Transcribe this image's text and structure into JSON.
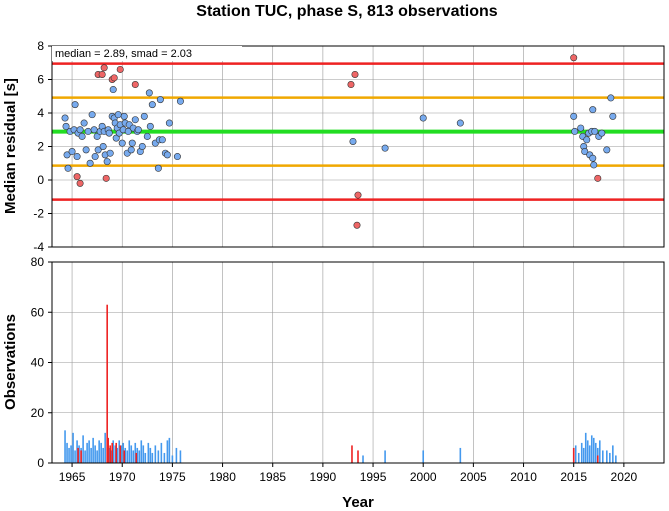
{
  "chart_data": [
    {
      "type": "scatter",
      "title": "Station TUC, phase S, 813 observations",
      "ylabel": "Median residual [s]",
      "annotation": "median = 2.89, smad = 2.03",
      "xlim": [
        1963,
        2024
      ],
      "ylim": [
        -4,
        8
      ],
      "yticks": [
        8,
        6,
        4,
        2,
        0,
        -2,
        -4
      ],
      "grid": true,
      "reference_lines": [
        {
          "y": 6.95,
          "color": "#ee2222",
          "role": "upper-outer"
        },
        {
          "y": 4.92,
          "color": "#f0a800",
          "role": "upper-inner"
        },
        {
          "y": 2.89,
          "color": "#22dd22",
          "role": "median"
        },
        {
          "y": 0.86,
          "color": "#f0a800",
          "role": "lower-inner"
        },
        {
          "y": -1.17,
          "color": "#ee2222",
          "role": "lower-outer"
        }
      ],
      "series": [
        {
          "color": "#77aaee",
          "points": [
            [
              1964.3,
              3.7
            ],
            [
              1964.4,
              3.2
            ],
            [
              1964.5,
              1.5
            ],
            [
              1964.6,
              0.7
            ],
            [
              1964.8,
              2.9
            ],
            [
              1965.0,
              1.7
            ],
            [
              1965.2,
              3.0
            ],
            [
              1965.3,
              4.5
            ],
            [
              1965.5,
              1.4
            ],
            [
              1965.6,
              2.8
            ],
            [
              1965.8,
              3.0
            ],
            [
              1966.0,
              2.6
            ],
            [
              1966.2,
              3.4
            ],
            [
              1966.4,
              1.8
            ],
            [
              1966.6,
              2.9
            ],
            [
              1966.8,
              1.0
            ],
            [
              1967.0,
              3.9
            ],
            [
              1967.2,
              3.0
            ],
            [
              1967.3,
              1.4
            ],
            [
              1967.5,
              2.6
            ],
            [
              1967.6,
              1.8
            ],
            [
              1967.8,
              2.9
            ],
            [
              1968.0,
              3.2
            ],
            [
              1968.1,
              2.0
            ],
            [
              1968.2,
              2.9
            ],
            [
              1968.3,
              1.5
            ],
            [
              1968.5,
              1.1
            ],
            [
              1968.6,
              3.0
            ],
            [
              1968.7,
              2.8
            ],
            [
              1968.8,
              1.6
            ],
            [
              1969.0,
              3.8
            ],
            [
              1969.1,
              5.4
            ],
            [
              1969.2,
              3.7
            ],
            [
              1969.3,
              3.4
            ],
            [
              1969.4,
              2.5
            ],
            [
              1969.5,
              3.1
            ],
            [
              1969.6,
              3.9
            ],
            [
              1969.7,
              2.8
            ],
            [
              1969.8,
              3.3
            ],
            [
              1970.0,
              2.2
            ],
            [
              1970.1,
              3.0
            ],
            [
              1970.2,
              3.8
            ],
            [
              1970.3,
              3.4
            ],
            [
              1970.5,
              1.6
            ],
            [
              1970.6,
              2.9
            ],
            [
              1970.7,
              3.3
            ],
            [
              1970.9,
              1.8
            ],
            [
              1971.0,
              2.2
            ],
            [
              1971.1,
              3.1
            ],
            [
              1971.3,
              3.6
            ],
            [
              1971.5,
              2.9
            ],
            [
              1971.6,
              3.0
            ],
            [
              1971.8,
              1.7
            ],
            [
              1972.0,
              2.0
            ],
            [
              1972.2,
              3.8
            ],
            [
              1972.5,
              2.6
            ],
            [
              1972.7,
              5.2
            ],
            [
              1972.8,
              3.2
            ],
            [
              1973.0,
              4.5
            ],
            [
              1973.3,
              2.2
            ],
            [
              1973.6,
              0.7
            ],
            [
              1973.7,
              2.4
            ],
            [
              1973.8,
              4.8
            ],
            [
              1974.0,
              2.4
            ],
            [
              1974.3,
              1.6
            ],
            [
              1974.5,
              1.5
            ],
            [
              1974.7,
              3.4
            ],
            [
              1975.5,
              1.4
            ],
            [
              1975.8,
              4.7
            ],
            [
              1993.0,
              2.3
            ],
            [
              1996.2,
              1.9
            ],
            [
              2000.0,
              3.7
            ],
            [
              2003.7,
              3.4
            ],
            [
              2015.0,
              3.8
            ],
            [
              2015.1,
              2.9
            ],
            [
              2015.7,
              3.1
            ],
            [
              2015.9,
              2.6
            ],
            [
              2016.0,
              2.0
            ],
            [
              2016.1,
              1.7
            ],
            [
              2016.3,
              2.4
            ],
            [
              2016.5,
              2.8
            ],
            [
              2016.6,
              1.5
            ],
            [
              2016.8,
              2.9
            ],
            [
              2016.9,
              1.3
            ],
            [
              2017.0,
              0.9
            ],
            [
              2017.1,
              2.9
            ],
            [
              2017.5,
              2.6
            ],
            [
              2017.8,
              2.8
            ],
            [
              2018.3,
              1.8
            ],
            [
              2018.7,
              4.9
            ],
            [
              2018.9,
              3.8
            ],
            [
              2016.9,
              4.2
            ]
          ]
        },
        {
          "color": "#ee6666",
          "points": [
            [
              1965.5,
              0.2
            ],
            [
              1965.8,
              -0.2
            ],
            [
              1967.6,
              6.3
            ],
            [
              1968.0,
              6.3
            ],
            [
              1968.2,
              6.7
            ],
            [
              1968.4,
              0.1
            ],
            [
              1969.0,
              6.0
            ],
            [
              1969.2,
              6.1
            ],
            [
              1969.8,
              6.6
            ],
            [
              1971.3,
              5.7
            ],
            [
              1992.8,
              5.7
            ],
            [
              1993.2,
              6.3
            ],
            [
              1993.5,
              -0.9
            ],
            [
              1993.4,
              -2.7
            ],
            [
              2015.0,
              7.3
            ],
            [
              2017.4,
              0.1
            ]
          ]
        }
      ]
    },
    {
      "type": "bar",
      "ylabel": "Observations",
      "xlabel": "Year",
      "xlim": [
        1963,
        2024
      ],
      "ylim": [
        0,
        80
      ],
      "yticks": [
        80,
        60,
        40,
        20,
        0
      ],
      "xticks": [
        1965,
        1970,
        1975,
        1980,
        1985,
        1990,
        1995,
        2000,
        2005,
        2010,
        2015,
        2020
      ],
      "grid": true,
      "series": [
        {
          "color": "#4499ee",
          "bars": [
            [
              1964.3,
              13
            ],
            [
              1964.5,
              8
            ],
            [
              1964.7,
              6
            ],
            [
              1964.9,
              7
            ],
            [
              1965.1,
              12
            ],
            [
              1965.3,
              5
            ],
            [
              1965.5,
              9
            ],
            [
              1965.7,
              7
            ],
            [
              1965.9,
              6
            ],
            [
              1966.1,
              11
            ],
            [
              1966.3,
              5
            ],
            [
              1966.5,
              8
            ],
            [
              1966.7,
              9
            ],
            [
              1966.9,
              6
            ],
            [
              1967.1,
              10
            ],
            [
              1967.3,
              7
            ],
            [
              1967.5,
              5
            ],
            [
              1967.7,
              9
            ],
            [
              1967.9,
              8
            ],
            [
              1968.1,
              6
            ],
            [
              1968.3,
              12
            ],
            [
              1968.7,
              6
            ],
            [
              1968.9,
              5
            ],
            [
              1969.1,
              9
            ],
            [
              1969.3,
              7
            ],
            [
              1969.5,
              6
            ],
            [
              1969.7,
              9
            ],
            [
              1969.9,
              7
            ],
            [
              1970.1,
              8
            ],
            [
              1970.3,
              6
            ],
            [
              1970.5,
              5
            ],
            [
              1970.7,
              9
            ],
            [
              1970.9,
              7
            ],
            [
              1971.1,
              5
            ],
            [
              1971.3,
              8
            ],
            [
              1971.5,
              6
            ],
            [
              1971.7,
              5
            ],
            [
              1971.9,
              9
            ],
            [
              1972.1,
              7
            ],
            [
              1972.3,
              4
            ],
            [
              1972.6,
              8
            ],
            [
              1972.8,
              6
            ],
            [
              1973.0,
              4
            ],
            [
              1973.3,
              7
            ],
            [
              1973.6,
              5
            ],
            [
              1973.9,
              8
            ],
            [
              1974.2,
              4
            ],
            [
              1974.5,
              9
            ],
            [
              1974.7,
              10
            ],
            [
              1975.0,
              3
            ],
            [
              1975.4,
              6
            ],
            [
              1975.8,
              5
            ],
            [
              1994.0,
              3
            ],
            [
              1996.2,
              5
            ],
            [
              2000.0,
              5
            ],
            [
              2003.7,
              6
            ],
            [
              2015.2,
              7
            ],
            [
              2015.5,
              4
            ],
            [
              2015.8,
              8
            ],
            [
              2016.0,
              6
            ],
            [
              2016.2,
              12
            ],
            [
              2016.4,
              9
            ],
            [
              2016.6,
              7
            ],
            [
              2016.8,
              11
            ],
            [
              2017.0,
              10
            ],
            [
              2017.2,
              8
            ],
            [
              2017.4,
              6
            ],
            [
              2017.6,
              9
            ],
            [
              2017.9,
              5
            ],
            [
              2018.3,
              5
            ],
            [
              2018.6,
              4
            ],
            [
              2018.9,
              7
            ],
            [
              2019.2,
              3
            ]
          ]
        },
        {
          "color": "#ee2222",
          "bars": [
            [
              1965.6,
              6
            ],
            [
              1965.9,
              5
            ],
            [
              1968.5,
              63
            ],
            [
              1968.6,
              10
            ],
            [
              1968.8,
              7
            ],
            [
              1969.0,
              8
            ],
            [
              1969.4,
              8
            ],
            [
              1969.8,
              7
            ],
            [
              1970.2,
              5
            ],
            [
              1971.4,
              4
            ],
            [
              1992.9,
              7
            ],
            [
              1993.5,
              5
            ],
            [
              2015.0,
              6
            ],
            [
              2017.4,
              3
            ]
          ]
        }
      ]
    }
  ]
}
